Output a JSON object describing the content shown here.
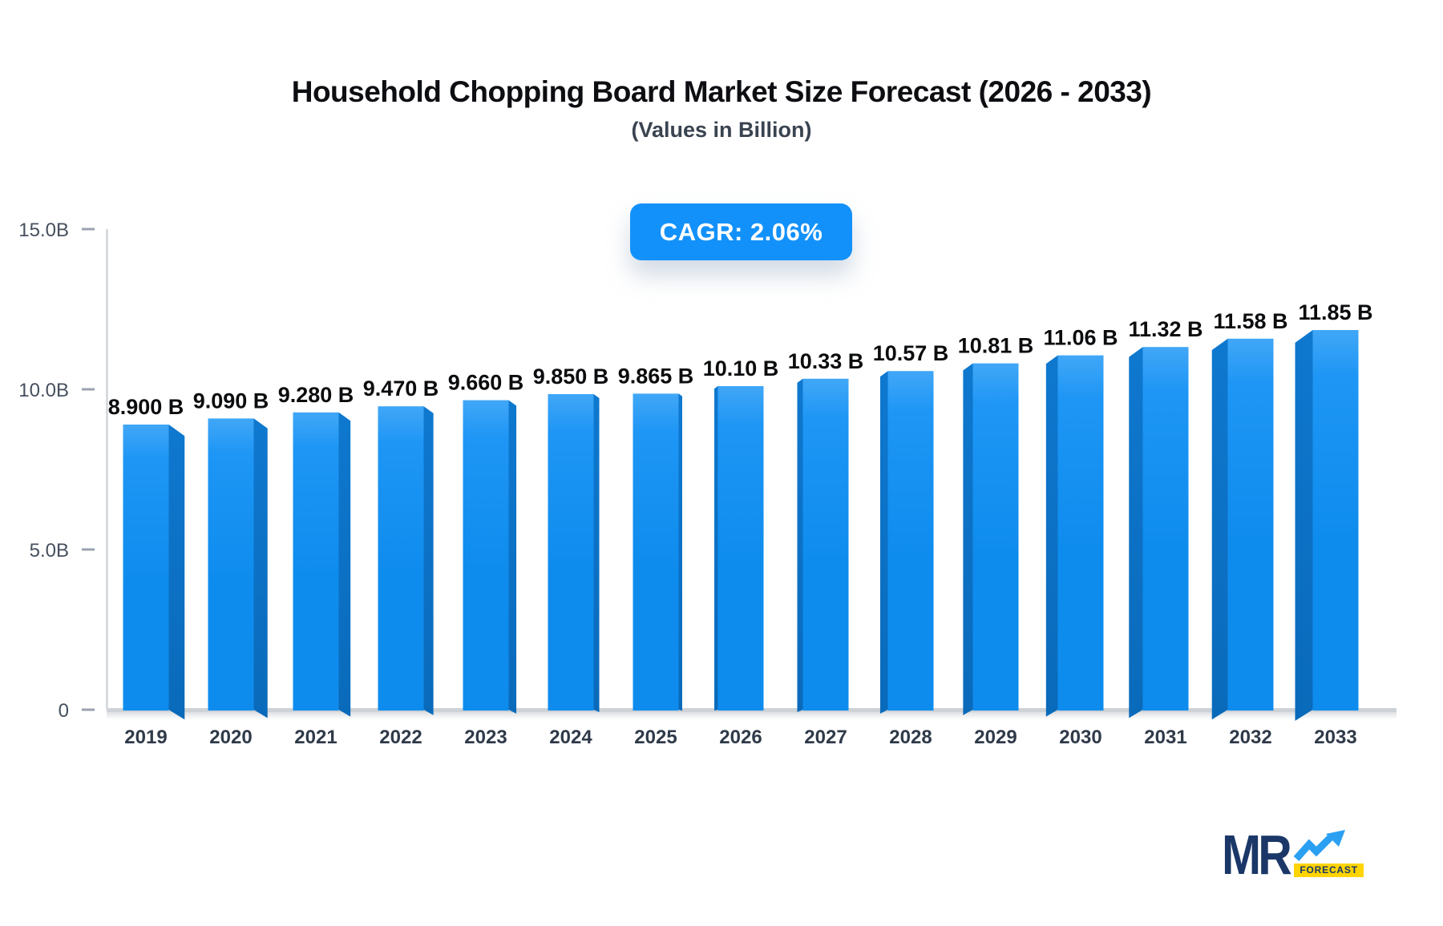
{
  "header": {
    "title": "Household Chopping Board Market Size Forecast (2026 - 2033)",
    "subtitle": "(Values in Billion)"
  },
  "badge": {
    "label": "CAGR: 2.06%"
  },
  "chart_data": {
    "type": "bar",
    "title": "Household Chopping Board Market Size Forecast (2026 - 2033)",
    "subtitle": "(Values in Billion)",
    "xlabel": "",
    "ylabel": "",
    "units": "Billion",
    "categories": [
      "2019",
      "2020",
      "2021",
      "2022",
      "2023",
      "2024",
      "2025",
      "2026",
      "2027",
      "2028",
      "2029",
      "2030",
      "2031",
      "2032",
      "2033"
    ],
    "values": [
      8.9,
      9.09,
      9.28,
      9.47,
      9.66,
      9.85,
      9.865,
      10.1,
      10.33,
      10.57,
      10.81,
      11.06,
      11.32,
      11.58,
      11.85
    ],
    "value_labels": [
      "8.900 B",
      "9.090 B",
      "9.280 B",
      "9.470 B",
      "9.660 B",
      "9.850 B",
      "9.865 B",
      "10.10 B",
      "10.33 B",
      "10.57 B",
      "10.81 B",
      "11.06 B",
      "11.32 B",
      "11.58 B",
      "11.85 B"
    ],
    "ylim": [
      0,
      15
    ],
    "y_ticks": [
      {
        "value": 0,
        "label": "0"
      },
      {
        "value": 5,
        "label": "5.0B"
      },
      {
        "value": 10,
        "label": "10.0B"
      },
      {
        "value": 15,
        "label": "15.0B"
      }
    ],
    "grid": false,
    "legend": "none",
    "cagr": "2.06%",
    "bar_style": "3d-perspective"
  },
  "logo": {
    "brand": "MR",
    "sub": "FORECAST"
  },
  "colors": {
    "badge_bg": "#1391FA",
    "bar_face_top": "#41A7F7",
    "bar_face_mid": "#1E96F5",
    "bar_face_bottom": "#0E8CEE",
    "bar_side_top": "#0E78CF",
    "bar_side_bottom": "#0A6ABA",
    "axis_line": "#D7DBDF",
    "baseline": "#CDD2D7",
    "tick_dash": "#9AA3AF",
    "y_label": "#46505E",
    "x_label": "#2F3A49",
    "value_label": "#0B0C0E",
    "logo_navy": "#1A3768",
    "logo_yellow": "#FFD400",
    "logo_blue": "#2BA0F2"
  }
}
